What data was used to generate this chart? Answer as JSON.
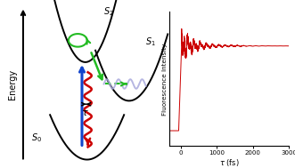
{
  "fig_width": 3.31,
  "fig_height": 1.89,
  "dpi": 100,
  "background": "#ffffff",
  "energy_label": "Energy",
  "s0_label": "$S_0$",
  "s1_label": "$S_1$",
  "s2_label": "$S_2$",
  "tau_label": "$\\tau$",
  "blue_arrow_color": "#1144cc",
  "red_wavy_color": "#cc0000",
  "green_arrow_color": "#22bb22",
  "plot_line_color": "#cc0000",
  "fluorescence_label": "Fluorescence Intensity",
  "x_axis_label": "$\\tau$ (fs)",
  "x_ticks": [
    0,
    1000,
    2000,
    3000
  ]
}
